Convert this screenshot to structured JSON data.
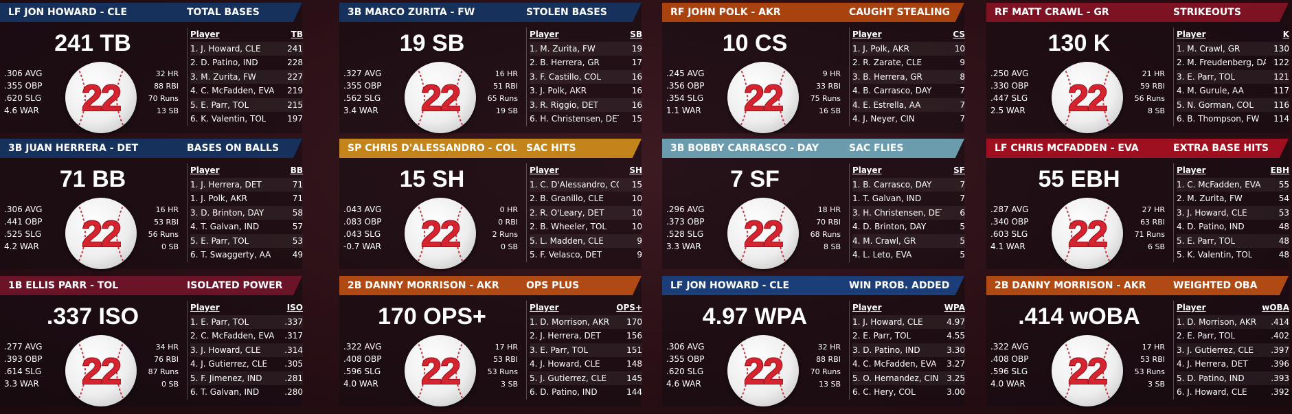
{
  "cards": [
    {
      "color": "#15315c",
      "player": "LF JON HOWARD - CLE",
      "category": "TOTAL BASES",
      "headline": "241 TB",
      "left_stats": [
        ".306 AVG",
        ".355 OBP",
        ".620 SLG",
        "4.6 WAR"
      ],
      "right_stats": [
        "32 HR",
        "88 RBI",
        "70 Runs",
        "13 SB"
      ],
      "ball_number": "22",
      "table": {
        "columns": [
          "Player",
          "TB"
        ],
        "rows": [
          [
            "1. J. Howard, CLE",
            "241"
          ],
          [
            "2. D. Patino, IND",
            "228"
          ],
          [
            "3. M. Zurita, FW",
            "227"
          ],
          [
            "4. C. McFadden, EVA",
            "219"
          ],
          [
            "5. E. Parr, TOL",
            "215"
          ],
          [
            "6. K. Valentin, TOL",
            "197"
          ]
        ]
      }
    },
    {
      "color": "#15315c",
      "player": "3B MARCO ZURITA - FW",
      "category": "STOLEN BASES",
      "headline": "19 SB",
      "left_stats": [
        ".327 AVG",
        ".355 OBP",
        ".562 SLG",
        "3.4 WAR"
      ],
      "right_stats": [
        "16 HR",
        "51 RBI",
        "65 Runs",
        "19 SB"
      ],
      "ball_number": "22",
      "table": {
        "columns": [
          "Player",
          "SB"
        ],
        "rows": [
          [
            "1. M. Zurita, FW",
            "19"
          ],
          [
            "2. B. Herrera, GR",
            "17"
          ],
          [
            "3. F. Castillo, COL",
            "16"
          ],
          [
            "3. J. Polk, AKR",
            "16"
          ],
          [
            "3. R. Riggio, DET",
            "16"
          ],
          [
            "6. H. Christensen, DET",
            "15"
          ]
        ]
      }
    },
    {
      "color": "#a8420f",
      "player": "RF JOHN POLK - AKR",
      "category": "CAUGHT STEALING",
      "headline": "10 CS",
      "left_stats": [
        ".245 AVG",
        ".356 OBP",
        ".354 SLG",
        "1.1 WAR"
      ],
      "right_stats": [
        "9 HR",
        "33 RBI",
        "75 Runs",
        "16 SB"
      ],
      "ball_number": "22",
      "table": {
        "columns": [
          "Player",
          "CS"
        ],
        "rows": [
          [
            "1. J. Polk, AKR",
            "10"
          ],
          [
            "2. R. Zarate, CLE",
            "9"
          ],
          [
            "3. B. Herrera, GR",
            "8"
          ],
          [
            "4. B. Carrasco, DAY",
            "7"
          ],
          [
            "4. E. Estrella, AA",
            "7"
          ],
          [
            "4. J. Neyer, CIN",
            "7"
          ]
        ]
      }
    },
    {
      "color": "#7c1222",
      "player": "RF MATT CRAWL - GR",
      "category": "STRIKEOUTS",
      "headline": "130 K",
      "left_stats": [
        ".250 AVG",
        ".330 OBP",
        ".447 SLG",
        "2.5 WAR"
      ],
      "right_stats": [
        "21 HR",
        "59 RBI",
        "56 Runs",
        "8 SB"
      ],
      "ball_number": "22",
      "table": {
        "columns": [
          "Player",
          "K"
        ],
        "rows": [
          [
            "1. M. Crawl, GR",
            "130"
          ],
          [
            "2. M. Freudenberg, DA",
            "122"
          ],
          [
            "3. E. Parr, TOL",
            "121"
          ],
          [
            "4. M. Gurule, AA",
            "117"
          ],
          [
            "5. N. Gorman, COL",
            "116"
          ],
          [
            "6. B. Thompson, FW",
            "114"
          ]
        ]
      }
    },
    {
      "color": "#15315c",
      "player": "3B JUAN HERRERA - DET",
      "category": "BASES ON BALLS",
      "headline": "71 BB",
      "left_stats": [
        ".306 AVG",
        ".441 OBP",
        ".525 SLG",
        "4.2 WAR"
      ],
      "right_stats": [
        "16 HR",
        "53 RBI",
        "56 Runs",
        "0 SB"
      ],
      "ball_number": "22",
      "table": {
        "columns": [
          "Player",
          "BB"
        ],
        "rows": [
          [
            "1. J. Herrera, DET",
            "71"
          ],
          [
            "1. J. Polk, AKR",
            "71"
          ],
          [
            "3. D. Brinton, DAY",
            "58"
          ],
          [
            "4. T. Galvan, IND",
            "57"
          ],
          [
            "5. E. Parr, TOL",
            "53"
          ],
          [
            "6. T. Swaggerty, AA",
            "49"
          ]
        ]
      }
    },
    {
      "color": "#c4841c",
      "player": "SP CHRIS D'ALESSANDRO - COL",
      "category": "SAC HITS",
      "headline": "15 SH",
      "left_stats": [
        ".043 AVG",
        ".083 OBP",
        ".043 SLG",
        "-0.7 WAR"
      ],
      "right_stats": [
        "0 HR",
        "0 RBI",
        "2 Runs",
        "0 SB"
      ],
      "ball_number": "22",
      "table": {
        "columns": [
          "Player",
          "SH"
        ],
        "rows": [
          [
            "1. C. D'Alessandro, CO",
            "15"
          ],
          [
            "2. B. Granillo, CLE",
            "10"
          ],
          [
            "2. R. O'Leary, DET",
            "10"
          ],
          [
            "2. B. Wheeler, TOL",
            "10"
          ],
          [
            "5. L. Madden, CLE",
            "9"
          ],
          [
            "5. F. Velasco, DET",
            "9"
          ]
        ]
      }
    },
    {
      "color": "#6a9cad",
      "player": "3B BOBBY CARRASCO - DAY",
      "category": "SAC FLIES",
      "headline": "7 SF",
      "left_stats": [
        ".296 AVG",
        ".373 OBP",
        ".528 SLG",
        "3.3 WAR"
      ],
      "right_stats": [
        "18 HR",
        "70 RBI",
        "68 Runs",
        "8 SB"
      ],
      "ball_number": "22",
      "table": {
        "columns": [
          "Player",
          "SF"
        ],
        "rows": [
          [
            "1. B. Carrasco, DAY",
            "7"
          ],
          [
            "1. T. Galvan, IND",
            "7"
          ],
          [
            "3. H. Christensen, DET",
            "6"
          ],
          [
            "4. D. Brinton, DAY",
            "5"
          ],
          [
            "4. M. Crawl, GR",
            "5"
          ],
          [
            "4. L. Leto, EVA",
            "5"
          ]
        ]
      }
    },
    {
      "color": "#9e1020",
      "player": "LF CHRIS MCFADDEN - EVA",
      "category": "EXTRA BASE HITS",
      "headline": "55 EBH",
      "left_stats": [
        ".287 AVG",
        ".340 OBP",
        ".603 SLG",
        "4.1 WAR"
      ],
      "right_stats": [
        "27 HR",
        "63 RBI",
        "71 Runs",
        "6 SB"
      ],
      "ball_number": "22",
      "table": {
        "columns": [
          "Player",
          "EBH"
        ],
        "rows": [
          [
            "1. C. McFadden, EVA",
            "55"
          ],
          [
            "2. M. Zurita, FW",
            "54"
          ],
          [
            "3. J. Howard, CLE",
            "53"
          ],
          [
            "4. D. Patino, IND",
            "48"
          ],
          [
            "5. E. Parr, TOL",
            "48"
          ],
          [
            "5. K. Valentin, TOL",
            "48"
          ]
        ]
      }
    },
    {
      "color": "#6b1428",
      "player": "1B ELLIS PARR - TOL",
      "category": "ISOLATED POWER",
      "headline": ".337 ISO",
      "left_stats": [
        ".277 AVG",
        ".393 OBP",
        ".614 SLG",
        "3.3 WAR"
      ],
      "right_stats": [
        "34 HR",
        "76 RBI",
        "87 Runs",
        "0 SB"
      ],
      "ball_number": "22",
      "table": {
        "columns": [
          "Player",
          "ISO"
        ],
        "rows": [
          [
            "1. E. Parr, TOL",
            ".337"
          ],
          [
            "2. C. McFadden, EVA",
            ".317"
          ],
          [
            "3. J. Howard, CLE",
            ".314"
          ],
          [
            "4. J. Gutierrez, CLE",
            ".305"
          ],
          [
            "5. F. Jimenez, IND",
            ".281"
          ],
          [
            "6. T. Galvan, IND",
            ".280"
          ]
        ]
      }
    },
    {
      "color": "#b04a14",
      "player": "2B DANNY MORRISON - AKR",
      "category": "OPS PLUS",
      "headline": "170 OPS+",
      "left_stats": [
        ".322 AVG",
        ".408 OBP",
        ".596 SLG",
        "4.0 WAR"
      ],
      "right_stats": [
        "17 HR",
        "53 RBI",
        "53 Runs",
        "3 SB"
      ],
      "ball_number": "22",
      "table": {
        "columns": [
          "Player",
          "OPS+"
        ],
        "rows": [
          [
            "1. D. Morrison, AKR",
            "170"
          ],
          [
            "2. J. Herrera, DET",
            "156"
          ],
          [
            "3. E. Parr, TOL",
            "151"
          ],
          [
            "4. J. Howard, CLE",
            "148"
          ],
          [
            "5. J. Gutierrez, CLE",
            "145"
          ],
          [
            "6. D. Patino, IND",
            "144"
          ]
        ]
      }
    },
    {
      "color": "#1b3d78",
      "player": "LF JON HOWARD - CLE",
      "category": "WIN PROB. ADDED",
      "headline": "4.97 WPA",
      "left_stats": [
        ".306 AVG",
        ".355 OBP",
        ".620 SLG",
        "4.6 WAR"
      ],
      "right_stats": [
        "32 HR",
        "88 RBI",
        "70 Runs",
        "13 SB"
      ],
      "ball_number": "22",
      "table": {
        "columns": [
          "Player",
          "WPA"
        ],
        "rows": [
          [
            "1. J. Howard, CLE",
            "4.97"
          ],
          [
            "2. E. Parr, TOL",
            "4.55"
          ],
          [
            "3. D. Patino, IND",
            "3.30"
          ],
          [
            "4. C. McFadden, EVA",
            "3.27"
          ],
          [
            "5. O. Hernandez, CIN",
            "3.25"
          ],
          [
            "6. C. Hery, COL",
            "3.00"
          ]
        ]
      }
    },
    {
      "color": "#b04a14",
      "player": "2B DANNY MORRISON - AKR",
      "category": "WEIGHTED OBA",
      "headline": ".414 wOBA",
      "left_stats": [
        ".322 AVG",
        ".408 OBP",
        ".596 SLG",
        "4.0 WAR"
      ],
      "right_stats": [
        "17 HR",
        "53 RBI",
        "53 Runs",
        "3 SB"
      ],
      "ball_number": "22",
      "table": {
        "columns": [
          "Player",
          "wOBA"
        ],
        "rows": [
          [
            "1. D. Morrison, AKR",
            ".414"
          ],
          [
            "2. E. Parr, TOL",
            ".402"
          ],
          [
            "3. J. Gutierrez, CLE",
            ".397"
          ],
          [
            "4. J. Herrera, DET",
            ".396"
          ],
          [
            "5. D. Patino, IND",
            ".393"
          ],
          [
            "6. J. Howard, CLE",
            ".392"
          ]
        ]
      }
    }
  ]
}
